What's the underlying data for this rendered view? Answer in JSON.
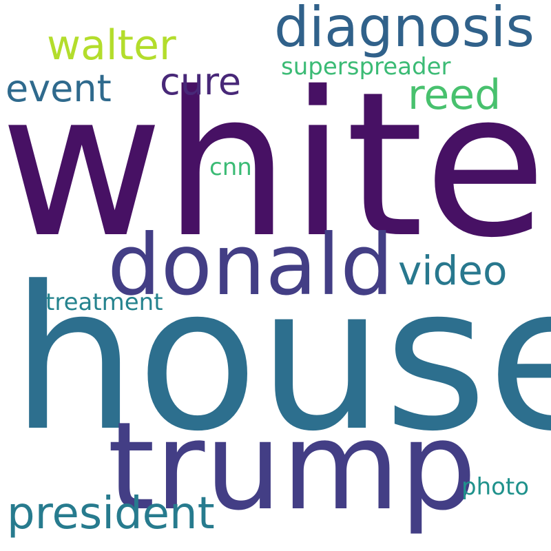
{
  "background": "#ffffff",
  "words": {
    "white": {
      "text": "white",
      "color": "#471164"
    },
    "house": {
      "text": "house",
      "color": "#2d6f8e"
    },
    "trump": {
      "text": "trump",
      "color": "#433e85"
    },
    "donald": {
      "text": "donald",
      "color": "#433e85"
    },
    "diagnosis": {
      "text": "diagnosis",
      "color": "#30618a"
    },
    "president": {
      "text": "president",
      "color": "#277b8e"
    },
    "walter": {
      "text": "walter",
      "color": "#b3dd2c"
    },
    "video": {
      "text": "video",
      "color": "#28788e"
    },
    "reed": {
      "text": "reed",
      "color": "#48c16e"
    },
    "event": {
      "text": "event",
      "color": "#2f6a8d"
    },
    "cure": {
      "text": "cure",
      "color": "#482878"
    },
    "superspreader": {
      "text": "superspreader",
      "color": "#3bbb75"
    },
    "treatment": {
      "text": "treatment",
      "color": "#25838e"
    },
    "cnn": {
      "text": "cnn",
      "color": "#3bbb75"
    },
    "photo": {
      "text": "photo",
      "color": "#20928c"
    }
  }
}
